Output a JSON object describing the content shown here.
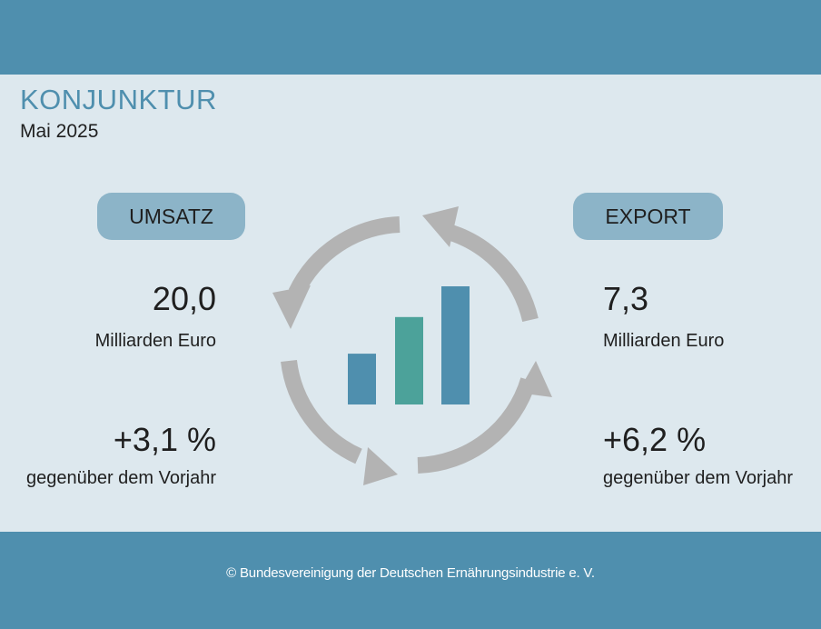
{
  "header": {
    "title": "KONJUNKTUR",
    "subtitle": "Mai 2025"
  },
  "umsatz": {
    "label": "UMSATZ",
    "value": "20,0",
    "unit": "Milliarden Euro",
    "change": "+3,1 %",
    "change_label": "gegenüber dem Vorjahr"
  },
  "export": {
    "label": "EXPORT",
    "value": "7,3",
    "unit": "Milliarden Euro",
    "change": "+6,2 %",
    "change_label": "gegenüber dem Vorjahr"
  },
  "icon": {
    "name": "cycle-bar-chart-icon",
    "bar_levels": [
      0.43,
      0.74,
      1.0
    ],
    "bar_colors": [
      "#4f8fae",
      "#4ca29a",
      "#4f8fae"
    ],
    "arrow_color": "#b3b3b3"
  },
  "footer": {
    "copyright": "© Bundesvereinigung der Deutschen Ernährungsindustrie e. V."
  },
  "colors": {
    "band": "#4f8fae",
    "background": "#dde8ee",
    "pill": "#8cb4c8",
    "title": "#4f8fae"
  }
}
